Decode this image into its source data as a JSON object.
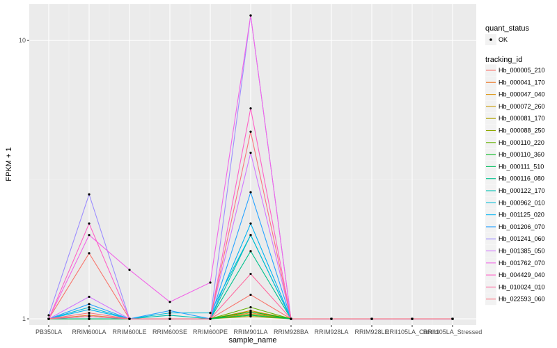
{
  "chart_data": {
    "type": "line",
    "xlabel": "sample_name",
    "ylabel": "FPKM + 1",
    "y_scale": "log10",
    "ylim": [
      0.95,
      13.5
    ],
    "y_ticks": [
      1,
      10
    ],
    "y_tick_labels": [
      "1",
      "10"
    ],
    "grid": true,
    "legend_position": "right",
    "categories": [
      "PB350LA",
      "RRIM600LA",
      "RRIM600LE",
      "RRIM600SE",
      "RRIM600PE",
      "RRIM901LA",
      "RRIM928BA",
      "RRIM928LA",
      "RRIM928LE",
      "RRII105LA_Control",
      "RRII105LA_Stressed"
    ],
    "point_legend": {
      "title": "quant_status",
      "items": [
        "OK"
      ]
    },
    "line_legend_title": "tracking_id",
    "series": [
      {
        "name": "Hb_000005_210",
        "color": "#F8766D",
        "values": [
          1,
          1.72,
          1,
          1,
          1,
          1.22,
          1,
          1,
          1,
          1,
          1
        ]
      },
      {
        "name": "Hb_000041_170",
        "color": "#EC8239",
        "values": [
          1,
          1.03,
          1,
          1,
          1,
          1.05,
          1,
          1,
          1,
          1,
          1
        ]
      },
      {
        "name": "Hb_000047_040",
        "color": "#DB8E00",
        "values": [
          1,
          1,
          1,
          1,
          1,
          1.07,
          1,
          1,
          1,
          1,
          1
        ]
      },
      {
        "name": "Hb_000072_260",
        "color": "#C79800",
        "values": [
          1,
          1,
          1,
          1,
          1,
          1.03,
          1,
          1,
          1,
          1,
          1
        ]
      },
      {
        "name": "Hb_000081_170",
        "color": "#AEA200",
        "values": [
          1,
          1,
          1,
          1,
          1,
          1.02,
          1,
          1,
          1,
          1,
          1
        ]
      },
      {
        "name": "Hb_000088_250",
        "color": "#8FAA00",
        "values": [
          1,
          1,
          1,
          1,
          1,
          1.04,
          1,
          1,
          1,
          1,
          1
        ]
      },
      {
        "name": "Hb_000110_220",
        "color": "#64B200",
        "values": [
          1,
          1,
          1,
          1,
          1,
          1.1,
          1,
          1,
          1,
          1,
          1
        ]
      },
      {
        "name": "Hb_000110_360",
        "color": "#00B81B",
        "values": [
          1,
          1,
          1,
          1,
          1,
          1.06,
          1,
          1,
          1,
          1,
          1
        ]
      },
      {
        "name": "Hb_000111_510",
        "color": "#00BD5C",
        "values": [
          1,
          1,
          1,
          1,
          1,
          1.03,
          1,
          1,
          1,
          1,
          1
        ]
      },
      {
        "name": "Hb_000116_080",
        "color": "#00C08D",
        "values": [
          1,
          1,
          1,
          1,
          1,
          1.75,
          1,
          1,
          1,
          1,
          1
        ]
      },
      {
        "name": "Hb_000122_170",
        "color": "#00C1B2",
        "values": [
          1,
          1.02,
          1,
          1.03,
          1,
          2.0,
          1,
          1,
          1,
          1,
          1
        ]
      },
      {
        "name": "Hb_000962_010",
        "color": "#00BCD6",
        "values": [
          1,
          1.1,
          1,
          1.05,
          1.05,
          2.0,
          1,
          1,
          1,
          1,
          1
        ]
      },
      {
        "name": "Hb_001125_020",
        "color": "#00B3F2",
        "values": [
          1,
          1.08,
          1,
          1,
          1,
          2.2,
          1,
          1,
          1,
          1,
          1
        ]
      },
      {
        "name": "Hb_001206_070",
        "color": "#29A3FF",
        "values": [
          1,
          1.13,
          1,
          1.07,
          1,
          2.85,
          1,
          1,
          1,
          1,
          1
        ]
      },
      {
        "name": "Hb_001241_060",
        "color": "#9C8DFF",
        "values": [
          1.03,
          2.8,
          1,
          1,
          1,
          12.3,
          1,
          1,
          1,
          1,
          1
        ]
      },
      {
        "name": "Hb_001385_050",
        "color": "#D277FF",
        "values": [
          1,
          1.2,
          1,
          1,
          1,
          3.95,
          1,
          1,
          1,
          1,
          1
        ]
      },
      {
        "name": "Hb_001762_070",
        "color": "#F166E8",
        "values": [
          1,
          2.0,
          1.5,
          1.15,
          1.35,
          12.3,
          1,
          1,
          1,
          1,
          1
        ]
      },
      {
        "name": "Hb_004429_040",
        "color": "#FF61C7",
        "values": [
          1,
          2.2,
          1,
          1,
          1,
          5.7,
          1,
          1,
          1,
          1,
          1
        ]
      },
      {
        "name": "Hb_010024_010",
        "color": "#FF689E",
        "values": [
          1,
          1.02,
          1,
          1,
          1,
          1.45,
          1,
          1,
          1,
          1,
          1
        ]
      },
      {
        "name": "Hb_022593_060",
        "color": "#FC717F",
        "values": [
          1,
          1.05,
          1,
          1,
          1,
          4.7,
          1,
          1,
          1,
          1,
          1
        ]
      }
    ]
  }
}
